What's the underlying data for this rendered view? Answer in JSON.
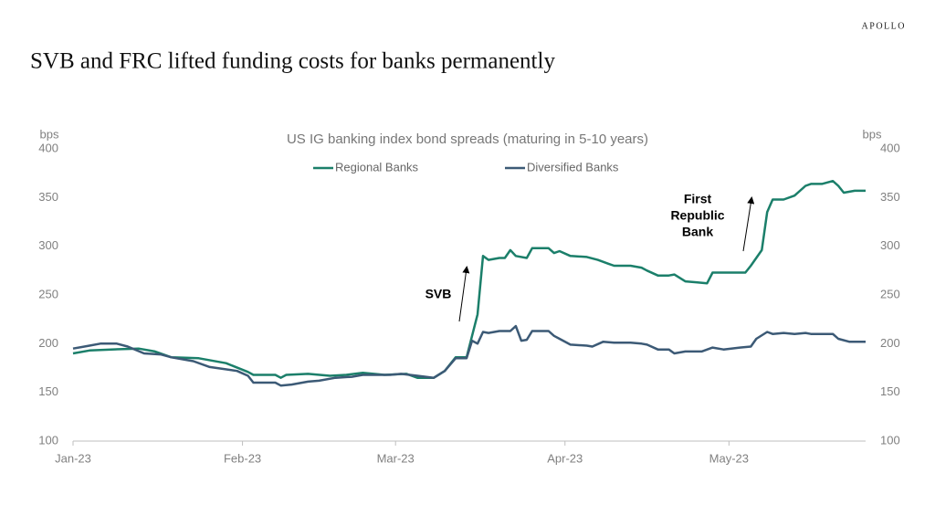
{
  "brand": "APOLLO",
  "headline": "SVB and FRC lifted funding costs for banks permanently",
  "chart_data": {
    "type": "line",
    "title": "US IG banking index bond spreads  (maturing in 5-10 years)",
    "y_label": "bps",
    "y2_label": "bps",
    "xlim": [
      0,
      145
    ],
    "xticks": [
      {
        "value": 0,
        "label": "Jan-23"
      },
      {
        "value": 31,
        "label": "Feb-23"
      },
      {
        "value": 59,
        "label": "Mar-23"
      },
      {
        "value": 90,
        "label": "Apr-23"
      },
      {
        "value": 120,
        "label": "May-23"
      }
    ],
    "ylim": [
      100,
      400
    ],
    "yticks": [
      100,
      150,
      200,
      250,
      300,
      350,
      400
    ],
    "y2lim": [
      100,
      400
    ],
    "y2ticks": [
      100,
      150,
      200,
      250,
      300,
      350,
      400
    ],
    "legend": "top",
    "series": [
      {
        "name": "Regional Banks",
        "color": "#1b7f6a",
        "x": [
          0,
          3,
          7,
          12,
          15,
          18,
          23,
          28,
          32,
          33,
          37,
          38,
          39,
          43,
          47,
          50,
          53,
          57,
          61,
          63,
          66,
          68,
          70,
          72,
          74,
          75,
          76,
          78,
          79,
          80,
          81,
          83,
          84,
          87,
          88,
          89,
          91,
          94,
          96,
          98,
          99,
          102,
          104,
          105,
          107,
          109,
          110,
          112,
          114,
          116,
          117,
          120,
          123,
          124,
          126,
          127,
          128,
          130,
          132,
          134,
          135,
          137,
          139,
          140,
          141,
          143,
          145
        ],
        "values": [
          190,
          193,
          194,
          195,
          192,
          186,
          185,
          180,
          171,
          168,
          168,
          165,
          168,
          169,
          167,
          168,
          170,
          168,
          169,
          165,
          165,
          172,
          186,
          186,
          230,
          290,
          286,
          288,
          288,
          296,
          290,
          288,
          298,
          298,
          293,
          295,
          290,
          289,
          286,
          282,
          280,
          280,
          278,
          275,
          270,
          270,
          271,
          264,
          263,
          262,
          273,
          273,
          273,
          280,
          296,
          335,
          348,
          348,
          352,
          362,
          364,
          364,
          367,
          362,
          355,
          357,
          357
        ]
      },
      {
        "name": "Diversified Banks",
        "color": "#3c5a76",
        "x": [
          0,
          3,
          5,
          8,
          10,
          13,
          16,
          18,
          22,
          25,
          30,
          32,
          33,
          37,
          38,
          40,
          43,
          45,
          48,
          51,
          53,
          58,
          60,
          63,
          66,
          68,
          70,
          72,
          73,
          74,
          75,
          76,
          78,
          80,
          81,
          82,
          83,
          84,
          87,
          88,
          89,
          91,
          94,
          95,
          97,
          99,
          102,
          104,
          105,
          107,
          109,
          110,
          112,
          115,
          117,
          119,
          122,
          124,
          125,
          127,
          128,
          130,
          132,
          134,
          135,
          138,
          139,
          140,
          142,
          145
        ],
        "values": [
          195,
          198,
          200,
          200,
          197,
          190,
          189,
          186,
          182,
          176,
          172,
          167,
          160,
          160,
          157,
          158,
          161,
          162,
          165,
          166,
          168,
          168,
          169,
          167,
          165,
          172,
          185,
          185,
          203,
          200,
          212,
          211,
          213,
          213,
          218,
          203,
          204,
          213,
          213,
          208,
          205,
          199,
          198,
          197,
          202,
          201,
          201,
          200,
          199,
          194,
          194,
          190,
          192,
          192,
          196,
          194,
          196,
          197,
          205,
          212,
          210,
          211,
          210,
          211,
          210,
          210,
          210,
          205,
          202,
          202
        ]
      }
    ],
    "annotations": [
      {
        "lines": [
          "SVB"
        ]
      },
      {
        "lines": [
          "First",
          "Republic",
          "Bank"
        ]
      }
    ]
  }
}
